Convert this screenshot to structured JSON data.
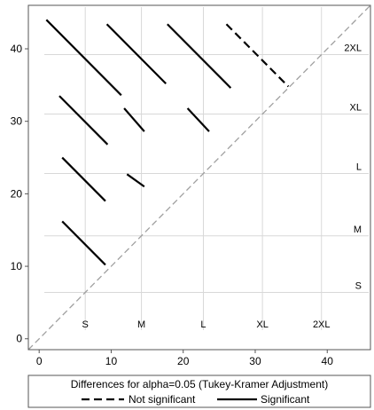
{
  "chart_data": {
    "type": "line",
    "title": "",
    "xlabel": "",
    "ylabel": "",
    "xlim": [
      -1.5,
      46
    ],
    "ylim": [
      -1.5,
      46
    ],
    "grid": false,
    "x_ticks": [
      0,
      10,
      20,
      30,
      40
    ],
    "y_ticks": [
      0,
      10,
      20,
      30,
      40
    ],
    "groups": [
      {
        "label": "S",
        "mean": 6.4
      },
      {
        "label": "M",
        "mean": 14.2
      },
      {
        "label": "L",
        "mean": 22.8
      },
      {
        "label": "XL",
        "mean": 31.0
      },
      {
        "label": "2XL",
        "mean": 39.2
      }
    ],
    "series": [
      {
        "name": "Not significant",
        "style": "dashed",
        "segments": [
          [
            26.0,
            43.4,
            34.6,
            34.8
          ]
        ]
      },
      {
        "name": "Significant",
        "style": "solid",
        "segments": [
          [
            3.2,
            16.2,
            9.2,
            10.2
          ],
          [
            3.2,
            25.0,
            9.2,
            19.0
          ],
          [
            12.2,
            22.7,
            14.6,
            21.0
          ],
          [
            2.8,
            33.5,
            9.5,
            26.8
          ],
          [
            11.8,
            31.8,
            14.6,
            28.6
          ],
          [
            20.6,
            31.8,
            23.6,
            28.6
          ],
          [
            1.0,
            44.0,
            11.4,
            33.6
          ],
          [
            9.4,
            43.4,
            17.6,
            35.2
          ],
          [
            17.8,
            43.4,
            26.6,
            34.6
          ]
        ]
      }
    ],
    "reference_line": {
      "from": [
        -1.5,
        -1.5
      ],
      "to": [
        46,
        46
      ],
      "style": "dashed",
      "color": "#a0a0a0"
    },
    "legend": {
      "title": "Differences for alpha=0.05 (Tukey-Kramer Adjustment)",
      "entries": [
        "Not significant",
        "Significant"
      ],
      "position": "bottom"
    }
  },
  "colors": {
    "line": "#000000",
    "reference": "#a0a0a0",
    "gridline": "#d8d8d8",
    "frame": "#555555"
  }
}
